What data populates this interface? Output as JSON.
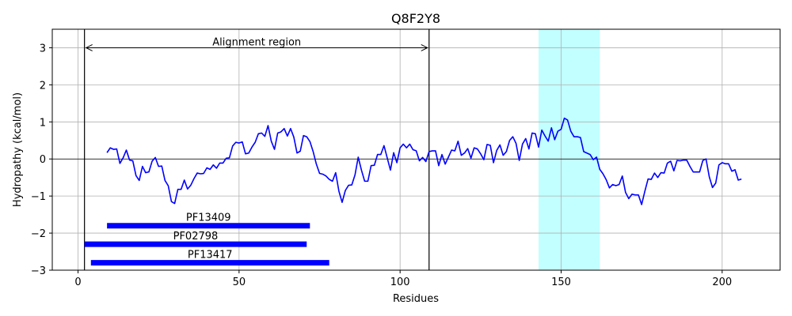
{
  "chart_data": {
    "type": "line",
    "title": "Q8F2Y8",
    "xlabel": "Residues",
    "ylabel": "Hydropathy (kcal/mol)",
    "xlim": [
      -8,
      218
    ],
    "ylim": [
      -3,
      3.5
    ],
    "xticks": [
      0,
      50,
      100,
      150,
      200
    ],
    "yticks": [
      -3,
      -2,
      -1,
      0,
      1,
      2,
      3
    ],
    "grid": true,
    "series": [
      {
        "color": "#0000ff",
        "x_start": 9,
        "values": [
          0.17,
          0.3,
          0.26,
          0.27,
          -0.12,
          0.03,
          0.24,
          -0.03,
          -0.05,
          -0.45,
          -0.58,
          -0.2,
          -0.37,
          -0.35,
          -0.06,
          0.04,
          -0.2,
          -0.19,
          -0.58,
          -0.72,
          -1.15,
          -1.2,
          -0.82,
          -0.82,
          -0.57,
          -0.81,
          -0.71,
          -0.53,
          -0.38,
          -0.4,
          -0.39,
          -0.24,
          -0.28,
          -0.16,
          -0.25,
          -0.11,
          -0.11,
          0.02,
          0.03,
          0.35,
          0.45,
          0.43,
          0.46,
          0.14,
          0.16,
          0.32,
          0.45,
          0.68,
          0.7,
          0.61,
          0.9,
          0.48,
          0.26,
          0.7,
          0.73,
          0.82,
          0.62,
          0.82,
          0.59,
          0.16,
          0.21,
          0.63,
          0.6,
          0.47,
          0.2,
          -0.14,
          -0.39,
          -0.41,
          -0.46,
          -0.55,
          -0.6,
          -0.37,
          -0.87,
          -1.17,
          -0.85,
          -0.71,
          -0.7,
          -0.43,
          0.05,
          -0.3,
          -0.6,
          -0.6,
          -0.18,
          -0.17,
          0.12,
          0.12,
          0.36,
          0.03,
          -0.3,
          0.17,
          -0.1,
          0.3,
          0.4,
          0.3,
          0.4,
          0.25,
          0.22,
          -0.05,
          0.04,
          -0.07,
          0.2,
          0.22,
          0.22,
          -0.18,
          0.12,
          -0.14,
          0.05,
          0.24,
          0.22,
          0.48,
          0.1,
          0.16,
          0.28,
          0.02,
          0.3,
          0.27,
          0.14,
          -0.02,
          0.39,
          0.37,
          -0.1,
          0.23,
          0.38,
          0.1,
          0.2,
          0.5,
          0.6,
          0.42,
          -0.04,
          0.4,
          0.55,
          0.27,
          0.7,
          0.68,
          0.32,
          0.78,
          0.62,
          0.48,
          0.84,
          0.52,
          0.75,
          0.8,
          1.1,
          1.05,
          0.75,
          0.6,
          0.6,
          0.58,
          0.2,
          0.16,
          0.12,
          -0.02,
          0.05,
          -0.28,
          -0.4,
          -0.56,
          -0.78,
          -0.69,
          -0.72,
          -0.69,
          -0.46,
          -0.9,
          -1.07,
          -0.95,
          -0.97,
          -0.97,
          -1.23,
          -0.87,
          -0.54,
          -0.55,
          -0.38,
          -0.5,
          -0.37,
          -0.38,
          -0.11,
          -0.06,
          -0.32,
          -0.04,
          -0.05,
          -0.03,
          -0.03,
          -0.2,
          -0.35,
          -0.35,
          -0.35,
          -0.04,
          0.0,
          -0.48,
          -0.77,
          -0.65,
          -0.16,
          -0.1,
          -0.13,
          -0.13,
          -0.33,
          -0.29,
          -0.57,
          -0.54
        ]
      }
    ],
    "alignment": {
      "start": 2,
      "end": 109,
      "label": "Alignment region",
      "arrow_y": 3
    },
    "highlight": {
      "start": 143,
      "end": 162,
      "color": "#c2ffff"
    },
    "domains": [
      {
        "name": "PF13409",
        "start": 9,
        "end": 72,
        "y": -1.8,
        "color": "#0000ff"
      },
      {
        "name": "PF02798",
        "start": 2,
        "end": 71,
        "y": -2.3,
        "color": "#0000ff"
      },
      {
        "name": "PF13417",
        "start": 4,
        "end": 78,
        "y": -2.8,
        "color": "#0000ff"
      }
    ]
  }
}
